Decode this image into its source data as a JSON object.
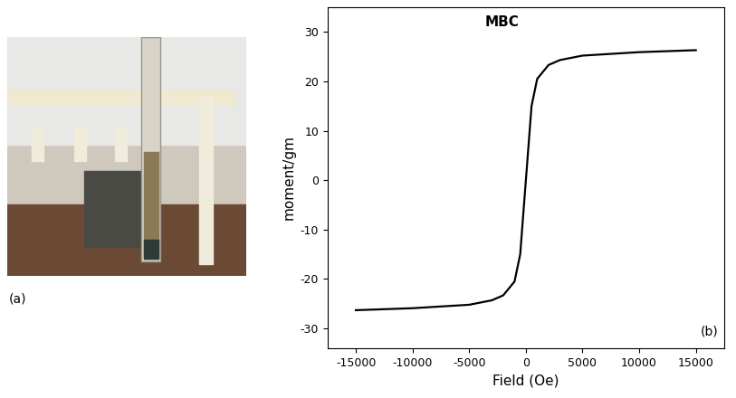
{
  "photo": {
    "label": "(a)"
  },
  "chart_data": {
    "type": "line",
    "title": "MBC",
    "annotations": [
      "(b)"
    ],
    "x_label": "Field (Oe)",
    "y_label": "moment/gm",
    "x": [
      -15000,
      -10000,
      -5000,
      -3000,
      -2000,
      -1000,
      -500,
      -200,
      0,
      200,
      500,
      1000,
      2000,
      3000,
      5000,
      10000,
      15000
    ],
    "values": [
      -26.3,
      -25.9,
      -25.2,
      -24.3,
      -23.3,
      -20.5,
      -15,
      -6,
      0,
      6,
      15,
      20.5,
      23.3,
      24.3,
      25.2,
      25.9,
      26.3
    ],
    "color": "#000000",
    "xlim": [
      -17500,
      17500
    ],
    "ylim": [
      -34,
      35
    ],
    "xticks": [
      -15000,
      -10000,
      -5000,
      0,
      5000,
      10000,
      15000
    ],
    "yticks": [
      -30,
      -20,
      -10,
      0,
      10,
      20,
      30
    ],
    "grid": false
  }
}
